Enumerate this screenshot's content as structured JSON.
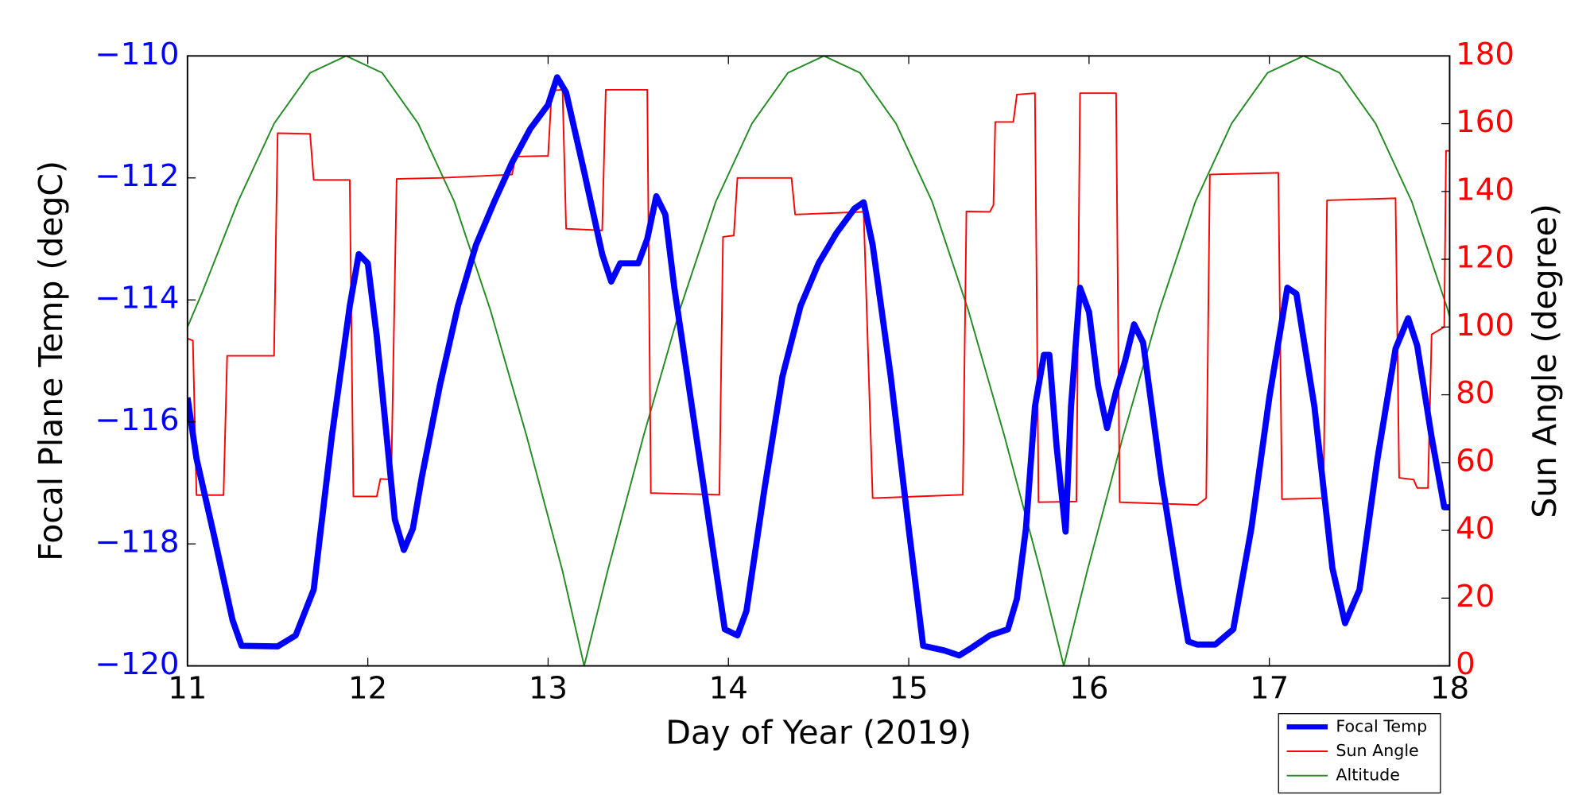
{
  "chart_data": {
    "type": "line",
    "xlabel": "Day of Year (2019)",
    "ylabel": "Focal Plane Temp (degC)",
    "y2label": "Sun Angle (degree)",
    "xlim": [
      11,
      18
    ],
    "xticks": [
      11,
      12,
      13,
      14,
      15,
      16,
      17,
      18
    ],
    "ylim": [
      -120,
      -110
    ],
    "yticks": [
      {
        "value": -120,
        "label": "−120"
      },
      {
        "value": -118,
        "label": "−118"
      },
      {
        "value": -116,
        "label": "−116"
      },
      {
        "value": -114,
        "label": "−114"
      },
      {
        "value": -112,
        "label": "−112"
      },
      {
        "value": -110,
        "label": "−110"
      }
    ],
    "y2lim": [
      0,
      180
    ],
    "y2ticks": [
      0,
      20,
      40,
      60,
      80,
      100,
      120,
      140,
      160,
      180
    ],
    "ycolor": "#0000ff",
    "y2color": "#ff0000",
    "legend": "lower right",
    "series": [
      {
        "name": "Focal Temp",
        "color": "#0000ff",
        "x": [
          11.0,
          11.05,
          11.15,
          11.25,
          11.3,
          11.5,
          11.6,
          11.7,
          11.8,
          11.9,
          11.95,
          12.0,
          12.05,
          12.1,
          12.15,
          12.2,
          12.25,
          12.3,
          12.4,
          12.5,
          12.6,
          12.7,
          12.8,
          12.9,
          13.0,
          13.05,
          13.1,
          13.2,
          13.3,
          13.35,
          13.4,
          13.5,
          13.55,
          13.6,
          13.65,
          13.7,
          13.8,
          13.9,
          13.98,
          14.05,
          14.1,
          14.2,
          14.3,
          14.4,
          14.5,
          14.6,
          14.7,
          14.75,
          14.8,
          14.9,
          15.0,
          15.08,
          15.2,
          15.28,
          15.35,
          15.45,
          15.55,
          15.6,
          15.65,
          15.7,
          15.75,
          15.78,
          15.82,
          15.87,
          15.9,
          15.95,
          16.0,
          16.05,
          16.1,
          16.15,
          16.2,
          16.25,
          16.3,
          16.4,
          16.5,
          16.55,
          16.6,
          16.7,
          16.8,
          16.9,
          17.0,
          17.1,
          17.15,
          17.25,
          17.35,
          17.42,
          17.5,
          17.6,
          17.7,
          17.77,
          17.82,
          17.9,
          17.97,
          18.0
        ],
        "values": [
          -115.6,
          -116.6,
          -117.9,
          -119.25,
          -119.67,
          -119.68,
          -119.5,
          -118.75,
          -116.25,
          -114.1,
          -113.25,
          -113.4,
          -114.6,
          -116.1,
          -117.6,
          -118.1,
          -117.75,
          -116.9,
          -115.4,
          -114.1,
          -113.1,
          -112.4,
          -111.75,
          -111.2,
          -110.8,
          -110.35,
          -110.6,
          -111.9,
          -113.25,
          -113.7,
          -113.4,
          -113.4,
          -113.0,
          -112.3,
          -112.6,
          -113.8,
          -115.8,
          -117.8,
          -119.4,
          -119.5,
          -119.1,
          -117.1,
          -115.25,
          -114.1,
          -113.4,
          -112.9,
          -112.5,
          -112.4,
          -113.1,
          -115.25,
          -117.75,
          -119.67,
          -119.75,
          -119.83,
          -119.7,
          -119.5,
          -119.4,
          -118.9,
          -117.75,
          -115.75,
          -114.9,
          -114.9,
          -116.4,
          -117.8,
          -115.75,
          -113.8,
          -114.2,
          -115.4,
          -116.1,
          -115.5,
          -115.0,
          -114.4,
          -114.7,
          -116.9,
          -118.75,
          -119.6,
          -119.65,
          -119.65,
          -119.4,
          -117.75,
          -115.6,
          -113.8,
          -113.9,
          -115.75,
          -118.4,
          -119.3,
          -118.75,
          -116.6,
          -114.8,
          -114.3,
          -114.75,
          -116.25,
          -117.4,
          -117.4
        ]
      },
      {
        "name": "Sun Angle",
        "color": "#ff0000",
        "axis": "y2",
        "x": [
          11.0,
          11.03,
          11.05,
          11.2,
          11.22,
          11.48,
          11.5,
          11.68,
          11.7,
          11.9,
          11.92,
          12.05,
          12.07,
          12.13,
          12.16,
          12.4,
          12.8,
          12.82,
          13.0,
          13.02,
          13.08,
          13.1,
          13.3,
          13.32,
          13.55,
          13.57,
          13.95,
          13.97,
          14.03,
          14.05,
          14.35,
          14.37,
          14.75,
          14.8,
          15.3,
          15.32,
          15.45,
          15.47,
          15.48,
          15.58,
          15.6,
          15.7,
          15.72,
          15.93,
          15.95,
          16.15,
          16.17,
          16.6,
          16.65,
          16.67,
          17.05,
          17.07,
          17.3,
          17.32,
          17.7,
          17.72,
          17.8,
          17.82,
          17.88,
          17.9,
          17.97,
          17.98,
          18.0
        ],
        "values": [
          96.6,
          96,
          50.4,
          50.4,
          91.5,
          91.5,
          157.2,
          157,
          143.4,
          143.4,
          50,
          50,
          55.2,
          55,
          143.7,
          144,
          145,
          150.3,
          150.5,
          169.8,
          170,
          129,
          128.5,
          170,
          170,
          51,
          50.5,
          126.6,
          127,
          144,
          144,
          133.2,
          134,
          49.5,
          50.5,
          134.1,
          134,
          136,
          160.5,
          160.5,
          168.6,
          169,
          48.3,
          48.5,
          169,
          169,
          48.3,
          47.5,
          49.5,
          145,
          145.5,
          49.2,
          49.5,
          137.4,
          138,
          55.5,
          55,
          52.5,
          52.5,
          97.8,
          100,
          152,
          152
        ]
      },
      {
        "name": "Altitude",
        "color": "#228b22",
        "axis": "y2",
        "x": [
          11.0,
          11.08,
          11.28,
          11.48,
          11.68,
          11.88,
          12.08,
          12.28,
          12.48,
          12.68,
          12.88,
          13.08,
          13.2,
          13.33,
          13.53,
          13.73,
          13.93,
          14.13,
          14.33,
          14.53,
          14.73,
          14.93,
          15.13,
          15.33,
          15.53,
          15.73,
          15.86,
          15.99,
          16.19,
          16.39,
          16.59,
          16.79,
          16.99,
          17.19,
          17.39,
          17.59,
          17.79,
          17.99,
          18.0
        ],
        "values": [
          100,
          110,
          137,
          160,
          175,
          180,
          175,
          160,
          137,
          105,
          68,
          28,
          0,
          28,
          68,
          105,
          137,
          160,
          175,
          180,
          175,
          160,
          137,
          105,
          68,
          28,
          0,
          28,
          68,
          105,
          137,
          160,
          175,
          180,
          175,
          160,
          137,
          105,
          103
        ]
      }
    ]
  }
}
